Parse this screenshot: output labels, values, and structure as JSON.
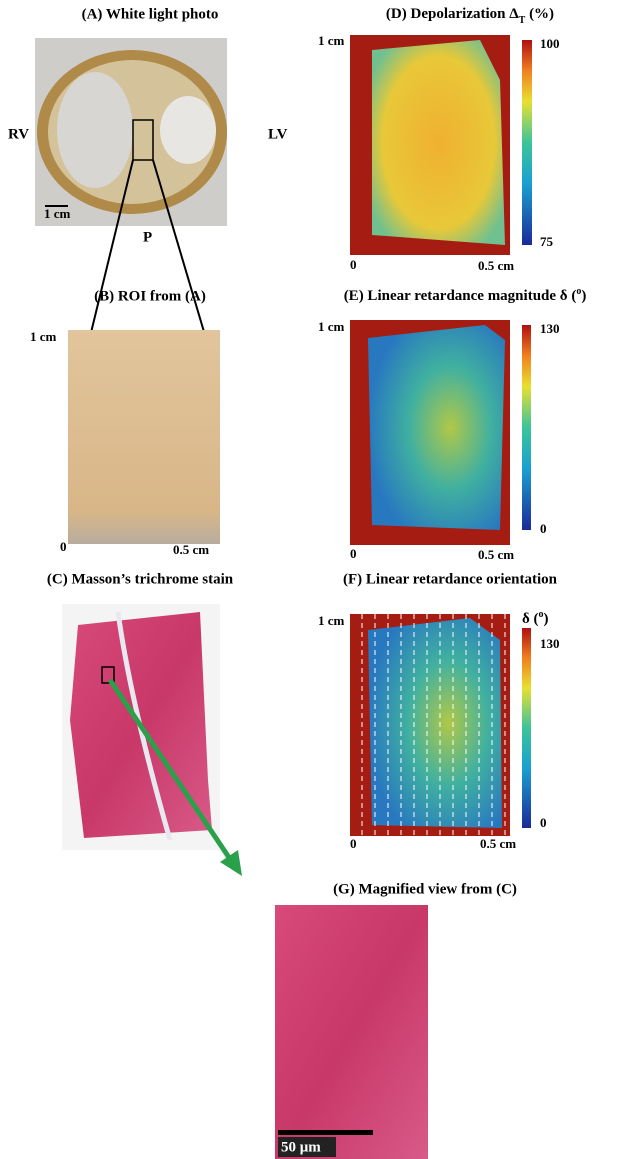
{
  "panel_a": {
    "title": "(A) White light photo",
    "rv": "RV",
    "lv": "LV",
    "p": "P",
    "scale": "1 cm"
  },
  "panel_b": {
    "title": "(B) ROI from (A)",
    "y_label": "1 cm",
    "origin": "0",
    "x_label": "0.5 cm"
  },
  "panel_c": {
    "title": "(C) Masson’s trichrome stain"
  },
  "panel_d": {
    "title": "(D) Depolarization Δ",
    "title_sub": "T",
    "title_tail": " (%)",
    "cb_max": 100,
    "cb_min": 75,
    "y_label": "1 cm",
    "origin": "0",
    "x_label": "0.5 cm"
  },
  "panel_e": {
    "title": "(E) Linear retardance magnitude δ (",
    "title_sup": "o",
    "title_tail": ")",
    "cb_max": 130,
    "cb_min": 0,
    "y_label": "1 cm",
    "origin": "0",
    "x_label": "0.5 cm"
  },
  "panel_f": {
    "title": "(F) Linear retardance orientation",
    "cb_title": "δ  (",
    "cb_title_sup": "o",
    "cb_title_tail": ")",
    "cb_max": 130,
    "cb_min": 0,
    "y_label": "1 cm",
    "origin": "0",
    "x_label": "0.5 cm"
  },
  "panel_g": {
    "title": "(G) Magnified view from (C)",
    "scale": "50 μm"
  }
}
